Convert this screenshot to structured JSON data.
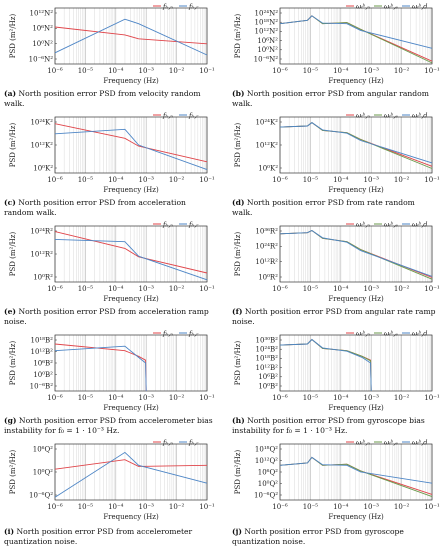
{
  "chart_data": [
    {
      "id": "a",
      "type": "line",
      "caption_label": "(a)",
      "caption": "North position error PSD from velocity random walk.",
      "xlabel": "Frequency (Hz)",
      "ylabel": "PSD (m²/Hz)",
      "yticks": [
        "10¹²N²",
        "10⁶N²",
        "10⁰N²",
        "10⁻⁶N²"
      ],
      "series": [
        {
          "name": "fₕ,ₙ",
          "color": "#e0454a",
          "points": [
            [
              -6,
              0.66
            ],
            [
              -3.7,
              0.52
            ],
            [
              -3.25,
              0.45
            ],
            [
              -1,
              0.36
            ]
          ]
        },
        {
          "name": "fₕ,ᵣ",
          "color": "#4e86c6",
          "points": [
            [
              -6,
              0.2
            ],
            [
              -3.7,
              0.8
            ],
            [
              -3.25,
              0.72
            ],
            [
              -1,
              0.16
            ]
          ]
        }
      ]
    },
    {
      "id": "b",
      "type": "line",
      "caption_label": "(b)",
      "caption": "North position error PSD from angular random walk.",
      "xlabel": "Frequency (Hz)",
      "ylabel": "PSD (m²/Hz)",
      "yticks": [
        "10²⁴N²",
        "10¹⁸N²",
        "10¹²N²",
        "10⁶N²",
        "10⁰N²",
        "10⁻⁶N²"
      ],
      "series": [
        {
          "name": "ωᵢᵇ,ₙ",
          "color": "#e0454a",
          "points": [
            [
              -6,
              0.72
            ],
            [
              -5.1,
              0.78
            ],
            [
              -4.95,
              0.86
            ],
            [
              -4.6,
              0.72
            ],
            [
              -3.8,
              0.74
            ],
            [
              -3.35,
              0.62
            ],
            [
              -1,
              0.05
            ]
          ]
        },
        {
          "name": "ωᵢᵇ,ₑ",
          "color": "#6b9a4c",
          "points": [
            [
              -6,
              0.72
            ],
            [
              -5.1,
              0.78
            ],
            [
              -4.95,
              0.86
            ],
            [
              -4.6,
              0.72
            ],
            [
              -3.8,
              0.74
            ],
            [
              -3.35,
              0.62
            ],
            [
              -1,
              0.02
            ]
          ]
        },
        {
          "name": "ωᵢᵇ,d",
          "color": "#4e86c6",
          "points": [
            [
              -6,
              0.72
            ],
            [
              -5.1,
              0.78
            ],
            [
              -4.95,
              0.86
            ],
            [
              -4.6,
              0.73
            ],
            [
              -3.8,
              0.72
            ],
            [
              -3.35,
              0.6
            ],
            [
              -1,
              0.28
            ]
          ]
        }
      ]
    },
    {
      "id": "c",
      "type": "line",
      "caption_label": "(c)",
      "caption": "North position error PSD from acceleration random walk.",
      "xlabel": "Frequency (Hz)",
      "ylabel": "PSD (m²/Hz)",
      "yticks": [
        "10²⁴K²",
        "10¹²K²",
        "10⁰K²"
      ],
      "series": [
        {
          "name": "fₕ,ₙ",
          "color": "#e0454a",
          "points": [
            [
              -6,
              0.88
            ],
            [
              -3.7,
              0.62
            ],
            [
              -3.25,
              0.48
            ],
            [
              -1,
              0.2
            ]
          ]
        },
        {
          "name": "fₕ,ᵣ",
          "color": "#4e86c6",
          "points": [
            [
              -6,
              0.7
            ],
            [
              -3.7,
              0.78
            ],
            [
              -3.25,
              0.5
            ],
            [
              -1,
              0.06
            ]
          ]
        }
      ]
    },
    {
      "id": "d",
      "type": "line",
      "caption_label": "(d)",
      "caption": "North position error PSD from rate random walk.",
      "xlabel": "Frequency (Hz)",
      "ylabel": "PSD (m²/Hz)",
      "yticks": [
        "10²⁴K²",
        "10¹²K²",
        "10⁰K²"
      ],
      "series": [
        {
          "name": "ωᵢᵇ,ₙ",
          "color": "#e0454a",
          "points": [
            [
              -6,
              0.82
            ],
            [
              -5.1,
              0.84
            ],
            [
              -4.95,
              0.9
            ],
            [
              -4.6,
              0.76
            ],
            [
              -3.8,
              0.72
            ],
            [
              -3.35,
              0.6
            ],
            [
              -1,
              0.12
            ]
          ]
        },
        {
          "name": "ωᵢᵇ,ₑ",
          "color": "#6b9a4c",
          "points": [
            [
              -6,
              0.82
            ],
            [
              -5.1,
              0.84
            ],
            [
              -4.95,
              0.9
            ],
            [
              -4.6,
              0.76
            ],
            [
              -3.8,
              0.72
            ],
            [
              -3.35,
              0.6
            ],
            [
              -1,
              0.08
            ]
          ]
        },
        {
          "name": "ωᵢᵇ,d",
          "color": "#4e86c6",
          "points": [
            [
              -6,
              0.82
            ],
            [
              -5.1,
              0.84
            ],
            [
              -4.95,
              0.9
            ],
            [
              -4.6,
              0.77
            ],
            [
              -3.8,
              0.71
            ],
            [
              -3.35,
              0.58
            ],
            [
              -1,
              0.18
            ]
          ]
        }
      ]
    },
    {
      "id": "e",
      "type": "line",
      "caption_label": "(e)",
      "caption": "North position error PSD from acceleration ramp noise.",
      "xlabel": "Frequency (Hz)",
      "ylabel": "PSD (m²/Hz)",
      "yticks": [
        "10²⁴R²",
        "10¹²R²",
        "10⁰R²"
      ],
      "series": [
        {
          "name": "fₕ,ₙ",
          "color": "#e0454a",
          "points": [
            [
              -6,
              0.9
            ],
            [
              -3.7,
              0.6
            ],
            [
              -3.25,
              0.45
            ],
            [
              -1,
              0.16
            ]
          ]
        },
        {
          "name": "fₕ,ᵣ",
          "color": "#4e86c6",
          "points": [
            [
              -6,
              0.76
            ],
            [
              -3.7,
              0.72
            ],
            [
              -3.25,
              0.46
            ],
            [
              -1,
              0.04
            ]
          ]
        }
      ]
    },
    {
      "id": "f",
      "type": "line",
      "caption_label": "(f)",
      "caption": "North position error PSD from angular rate ramp noise.",
      "xlabel": "Frequency (Hz)",
      "ylabel": "PSD (m²/Hz)",
      "yticks": [
        "10³⁶R²",
        "10²⁴R²",
        "10¹²R²",
        "10⁰R²"
      ],
      "series": [
        {
          "name": "ωᵢᵇ,ₙ",
          "color": "#e0454a",
          "points": [
            [
              -6,
              0.86
            ],
            [
              -5.1,
              0.88
            ],
            [
              -4.95,
              0.92
            ],
            [
              -4.6,
              0.78
            ],
            [
              -3.8,
              0.72
            ],
            [
              -3.35,
              0.58
            ],
            [
              -1,
              0.08
            ]
          ]
        },
        {
          "name": "ωᵢᵇ,ₑ",
          "color": "#6b9a4c",
          "points": [
            [
              -6,
              0.86
            ],
            [
              -5.1,
              0.88
            ],
            [
              -4.95,
              0.92
            ],
            [
              -4.6,
              0.78
            ],
            [
              -3.8,
              0.72
            ],
            [
              -3.35,
              0.58
            ],
            [
              -1,
              0.05
            ]
          ]
        },
        {
          "name": "ωᵢᵇ,d",
          "color": "#4e86c6",
          "points": [
            [
              -6,
              0.86
            ],
            [
              -5.1,
              0.88
            ],
            [
              -4.95,
              0.92
            ],
            [
              -4.6,
              0.79
            ],
            [
              -3.8,
              0.71
            ],
            [
              -3.35,
              0.56
            ],
            [
              -1,
              0.1
            ]
          ]
        }
      ]
    },
    {
      "id": "g",
      "type": "line",
      "caption_label": "(g)",
      "caption": "North position error PSD from accelerometer bias instability for f₀ = 1 · 10⁻³ Hz.",
      "xlabel": "Frequency (Hz)",
      "ylabel": "PSD (m²/Hz)",
      "yticks": [
        "10¹⁸B²",
        "10¹²B²",
        "10⁶B²",
        "10⁰B²",
        "10⁻⁶B²"
      ],
      "series": [
        {
          "name": "fₕ,ₙ",
          "color": "#e0454a",
          "points": [
            [
              -6,
              0.84
            ],
            [
              -3.7,
              0.72
            ],
            [
              -3.25,
              0.62
            ],
            [
              -3.02,
              0.55
            ],
            [
              -3.0,
              0.0
            ]
          ]
        },
        {
          "name": "fₕ,ᵣ",
          "color": "#4e86c6",
          "points": [
            [
              -6,
              0.72
            ],
            [
              -3.7,
              0.8
            ],
            [
              -3.25,
              0.6
            ],
            [
              -3.02,
              0.5
            ],
            [
              -3.0,
              0.0
            ]
          ]
        }
      ]
    },
    {
      "id": "h",
      "type": "line",
      "caption_label": "(h)",
      "caption": "North position error PSD from gyroscope bias instability for f₀ = 1 · 10⁻³ Hz.",
      "xlabel": "Frequency (Hz)",
      "ylabel": "PSD (m²/Hz)",
      "yticks": [
        "10³⁰B²",
        "10²⁴B²",
        "10¹⁸B²",
        "10¹²B²",
        "10⁶B²",
        "10⁰B²"
      ],
      "series": [
        {
          "name": "ωᵢᵇ,ₙ",
          "color": "#e0454a",
          "points": [
            [
              -6,
              0.82
            ],
            [
              -5.1,
              0.84
            ],
            [
              -4.95,
              0.92
            ],
            [
              -4.6,
              0.76
            ],
            [
              -3.8,
              0.72
            ],
            [
              -3.3,
              0.62
            ],
            [
              -3.02,
              0.55
            ],
            [
              -3.0,
              0.0
            ]
          ]
        },
        {
          "name": "ωᵢᵇ,ₑ",
          "color": "#6b9a4c",
          "points": [
            [
              -6,
              0.82
            ],
            [
              -5.1,
              0.84
            ],
            [
              -4.95,
              0.92
            ],
            [
              -4.6,
              0.76
            ],
            [
              -3.8,
              0.72
            ],
            [
              -3.3,
              0.62
            ],
            [
              -3.02,
              0.54
            ],
            [
              -3.0,
              0.0
            ]
          ]
        },
        {
          "name": "ωᵢᵇ,d",
          "color": "#4e86c6",
          "points": [
            [
              -6,
              0.82
            ],
            [
              -5.1,
              0.84
            ],
            [
              -4.95,
              0.92
            ],
            [
              -4.6,
              0.77
            ],
            [
              -3.8,
              0.71
            ],
            [
              -3.3,
              0.6
            ],
            [
              -3.02,
              0.5
            ],
            [
              -3.0,
              0.0
            ]
          ]
        }
      ]
    },
    {
      "id": "i",
      "type": "line",
      "caption_label": "(i)",
      "caption": "North position error PSD from accelerometer quantization noise.",
      "xlabel": "Frequency (Hz)",
      "ylabel": "PSD (m²/Hz)",
      "yticks": [
        "10⁶Q²",
        "10⁰Q²",
        "10⁻⁶Q²"
      ],
      "series": [
        {
          "name": "fₕ,ₙ",
          "color": "#e0454a",
          "points": [
            [
              -6,
              0.55
            ],
            [
              -3.7,
              0.72
            ],
            [
              -3.25,
              0.6
            ],
            [
              -1,
              0.62
            ]
          ]
        },
        {
          "name": "fₕ,ᵣ",
          "color": "#4e86c6",
          "points": [
            [
              -6,
              0.05
            ],
            [
              -3.7,
              0.85
            ],
            [
              -3.25,
              0.62
            ],
            [
              -1,
              0.3
            ]
          ]
        }
      ]
    },
    {
      "id": "j",
      "type": "line",
      "caption_label": "(j)",
      "caption": "North position error PSD from gyroscope quantization noise.",
      "xlabel": "Frequency (Hz)",
      "ylabel": "PSD (m²/Hz)",
      "yticks": [
        "10¹⁸Q²",
        "10¹²Q²",
        "10⁶Q²",
        "10⁰Q²",
        "10⁻⁶Q²"
      ],
      "series": [
        {
          "name": "ωᵢᵇ,ₙ",
          "color": "#e0454a",
          "points": [
            [
              -6,
              0.62
            ],
            [
              -5.1,
              0.66
            ],
            [
              -4.95,
              0.76
            ],
            [
              -4.6,
              0.62
            ],
            [
              -3.8,
              0.64
            ],
            [
              -3.35,
              0.52
            ],
            [
              -1,
              0.1
            ]
          ]
        },
        {
          "name": "ωᵢᵇ,ₑ",
          "color": "#6b9a4c",
          "points": [
            [
              -6,
              0.62
            ],
            [
              -5.1,
              0.66
            ],
            [
              -4.95,
              0.76
            ],
            [
              -4.6,
              0.62
            ],
            [
              -3.8,
              0.64
            ],
            [
              -3.35,
              0.52
            ],
            [
              -1,
              0.06
            ]
          ]
        },
        {
          "name": "ωᵢᵇ,d",
          "color": "#4e86c6",
          "points": [
            [
              -6,
              0.62
            ],
            [
              -5.1,
              0.66
            ],
            [
              -4.95,
              0.76
            ],
            [
              -4.6,
              0.63
            ],
            [
              -3.8,
              0.62
            ],
            [
              -3.35,
              0.5
            ],
            [
              -1,
              0.3
            ]
          ]
        }
      ]
    }
  ],
  "xticks": [
    "10⁻⁶",
    "10⁻⁵",
    "10⁻⁴",
    "10⁻³",
    "10⁻²",
    "10⁻¹"
  ]
}
